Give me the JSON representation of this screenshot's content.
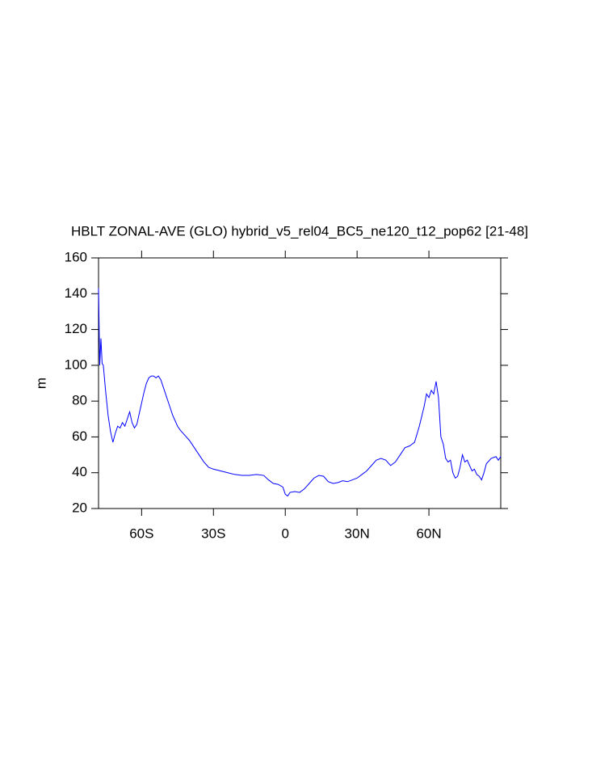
{
  "chart_data": {
    "type": "line",
    "title": "HBLT ZONAL-AVE (GLO) hybrid_v5_rel04_BC5_ne120_t12_pop62 [21-48]",
    "y_label": "m",
    "x": [
      -78,
      -77.5,
      -77,
      -76.5,
      -76,
      -75,
      -74,
      -73,
      -72,
      -71,
      -70,
      -69,
      -68,
      -67,
      -66,
      -65,
      -64,
      -63,
      -62,
      -61,
      -60,
      -59,
      -58,
      -57,
      -56,
      -55,
      -54,
      -53,
      -52,
      -51,
      -50,
      -49,
      -48,
      -47,
      -46,
      -45,
      -44,
      -42,
      -40,
      -38,
      -36,
      -34,
      -32,
      -30,
      -27,
      -24,
      -21,
      -18,
      -15,
      -12,
      -9,
      -7,
      -5,
      -3,
      -1,
      0,
      1,
      2,
      4,
      6,
      8,
      10,
      12,
      14,
      16,
      18,
      20,
      22,
      24,
      26,
      28,
      30,
      32,
      34,
      36,
      38,
      40,
      42,
      44,
      46,
      48,
      50,
      52,
      54,
      56,
      58,
      59,
      60,
      61,
      62,
      63,
      64,
      65,
      66,
      67,
      68,
      69,
      70,
      71,
      72,
      73,
      74,
      75,
      76,
      77,
      78,
      79,
      80,
      81,
      82,
      83,
      84,
      86,
      88,
      89,
      90
    ],
    "series": [
      {
        "name": "HBLT",
        "color": "#0000ff",
        "values": [
          143,
          100,
          115,
          101,
          100,
          85,
          72,
          63,
          57,
          62,
          66,
          65,
          68,
          66,
          70,
          74,
          68,
          65,
          67,
          73,
          79,
          85,
          90,
          93,
          94,
          94,
          93,
          94,
          92,
          88,
          84,
          80,
          76,
          72,
          69,
          66,
          64,
          61,
          58,
          54,
          50,
          46,
          43,
          42,
          41,
          40,
          39,
          38.5,
          38.5,
          39,
          38.5,
          36,
          34,
          33.5,
          32,
          28,
          27,
          29,
          29.5,
          29,
          31,
          34,
          37,
          38.5,
          38,
          35,
          34,
          34.5,
          35.5,
          35,
          36,
          37,
          39,
          41,
          44,
          47,
          48,
          47,
          44,
          46,
          50,
          54,
          55,
          57,
          66,
          77,
          84,
          82,
          86,
          84,
          91,
          82,
          60,
          56,
          48,
          46,
          47,
          40,
          37,
          38,
          43,
          50,
          46,
          47,
          44,
          41,
          42,
          39,
          38,
          36,
          40,
          45,
          48,
          49,
          47,
          49
        ]
      }
    ],
    "xlim": [
      -78,
      90
    ],
    "xticks": [
      {
        "value": -60,
        "label": "60S"
      },
      {
        "value": -30,
        "label": "30S"
      },
      0,
      {
        "value": 30,
        "label": "30N"
      },
      {
        "value": 60,
        "label": "60N"
      }
    ],
    "ylim": [
      20,
      160
    ],
    "yticks": [
      20,
      40,
      60,
      80,
      100,
      120,
      140,
      160
    ]
  }
}
